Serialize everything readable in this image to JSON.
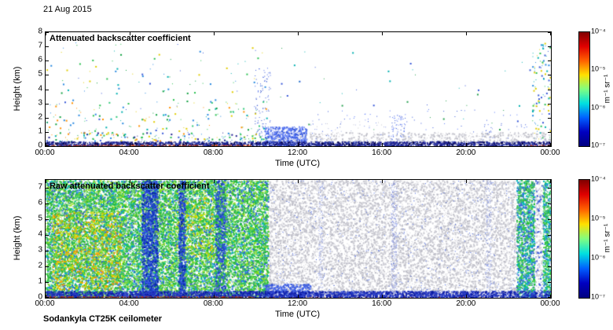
{
  "page": {
    "date_label": "21 Aug 2015",
    "footer_label": "Sodankyla CT25K ceilometer"
  },
  "chart_data": [
    {
      "type": "heatmap",
      "title": "Attenuated backscatter coefficient",
      "xlabel": "Time (UTC)",
      "ylabel": "Height (km)",
      "x_range_hours": [
        0,
        24
      ],
      "x_tick_hours": [
        0,
        4,
        8,
        12,
        16,
        20,
        24
      ],
      "x_tick_labels": [
        "00:00",
        "04:00",
        "08:00",
        "12:00",
        "16:00",
        "20:00",
        "00:00"
      ],
      "y_range_km": [
        0,
        8
      ],
      "y_tick_labels": [
        "0",
        "1",
        "2",
        "3",
        "4",
        "5",
        "6",
        "7",
        "8"
      ],
      "grid": false,
      "legend": "colorbar-right",
      "seed": 42,
      "colorbar": {
        "unit_label": "m⁻¹ sr⁻¹",
        "tick_labels": [
          "10⁻⁴",
          "10⁻⁵",
          "10⁻⁶",
          "10⁻⁷"
        ],
        "min": "1e-7",
        "max": "1e-4",
        "gradient": [
          "#800000",
          "#e00000",
          "#ff6000",
          "#ffe000",
          "#80ff80",
          "#00e0e0",
          "#0060ff",
          "#0000c0",
          "#000080"
        ]
      },
      "regions": [
        {
          "x": [
            0,
            10.6
          ],
          "y": [
            3.2,
            7.3
          ],
          "density": 0.004,
          "size": 2,
          "colors": [
            "#10a040",
            "#28c050",
            "#00b0b0",
            "#2888e0",
            "#e0cc00",
            "#3858d8"
          ]
        },
        {
          "x": [
            0,
            10.6
          ],
          "y": [
            1.0,
            3.2
          ],
          "density": 0.012,
          "size": 2,
          "colors": [
            "#10a040",
            "#28c050",
            "#00b0b0",
            "#2888e0",
            "#e0cc00",
            "#ff9000",
            "#3858d8",
            "#30c878"
          ]
        },
        {
          "x": [
            0,
            10.6
          ],
          "y": [
            0.3,
            1.0
          ],
          "density": 0.05,
          "size": 2,
          "colors": [
            "#10a040",
            "#28c050",
            "#00b0b0",
            "#2888e0",
            "#e0cc00",
            "#ff9000",
            "#3858d8",
            "#202090"
          ]
        },
        {
          "x": [
            10.6,
            23.1
          ],
          "y": [
            0.8,
            7.0
          ],
          "density": 0.0012,
          "size": 2,
          "colors": [
            "#3858d8",
            "#00b0b0",
            "#28a050"
          ]
        },
        {
          "x": [
            23.1,
            24
          ],
          "y": [
            0.4,
            7.3
          ],
          "density": 0.035,
          "size": 2,
          "colors": [
            "#00b0b0",
            "#2888e0",
            "#28c050",
            "#e0cc00",
            "#3858d8"
          ]
        },
        {
          "x": [
            9.9,
            10.7
          ],
          "y": [
            0,
            5.5
          ],
          "density": 0.05,
          "size": 1,
          "colors": [
            "#3858d8",
            "#2848c8",
            "#4868e8"
          ]
        },
        {
          "x": [
            10.6,
            24
          ],
          "y": [
            0,
            1.0
          ],
          "density": 0.12,
          "size": 2,
          "colors": [
            "#c6c6ce",
            "#d0d0d8",
            "#bcbcc6"
          ]
        },
        {
          "x": [
            12.4,
            16.2
          ],
          "y": [
            1.0,
            1.9
          ],
          "density": 0.02,
          "size": 1,
          "colors": [
            "#c6c6ce",
            "#8898e8",
            "#b0b8dd"
          ]
        },
        {
          "x": [
            10.4,
            12.4
          ],
          "y": [
            0,
            1.4
          ],
          "density": 0.38,
          "size": 2,
          "colors": [
            "#4868e8",
            "#5878f8",
            "#3858d8",
            "#8098f8"
          ]
        },
        {
          "x": [
            16.4,
            17.1
          ],
          "y": [
            0,
            2.2
          ],
          "density": 0.1,
          "size": 1,
          "colors": [
            "#3858d8",
            "#5878f8",
            "#8898e8"
          ]
        },
        {
          "x": [
            20.7,
            21.3
          ],
          "y": [
            0,
            1.5
          ],
          "density": 0.06,
          "size": 1,
          "colors": [
            "#3858d8",
            "#8898e8"
          ]
        },
        {
          "x": [
            12,
            23
          ],
          "y": [
            0.3,
            2.6
          ],
          "density": 0.006,
          "size": 1,
          "colors": [
            "#3858d8",
            "#5878f8"
          ]
        },
        {
          "x": [
            0,
            24
          ],
          "y": [
            0,
            0.35
          ],
          "density": 0.5,
          "size": 2,
          "colors": [
            "#141478",
            "#202094",
            "#3040b0",
            "#000048",
            "#2838a8"
          ]
        },
        {
          "x": [
            0,
            9.8
          ],
          "y": [
            0,
            0.1
          ],
          "density": 0.5,
          "size": 1,
          "colors": [
            "#c23000",
            "#e24800",
            "#8c2c08"
          ]
        },
        {
          "x": [
            22.8,
            24
          ],
          "y": [
            0,
            0.1
          ],
          "density": 0.3,
          "size": 1,
          "colors": [
            "#c23000",
            "#e24800"
          ]
        }
      ]
    },
    {
      "type": "heatmap",
      "title": "Raw attenuated backscatter coefficient",
      "xlabel": "Time (UTC)",
      "ylabel": "Height (km)",
      "x_range_hours": [
        0,
        24
      ],
      "x_tick_hours": [
        0,
        4,
        8,
        12,
        16,
        20,
        24
      ],
      "x_tick_labels": [
        "00:00",
        "04:00",
        "08:00",
        "12:00",
        "16:00",
        "20:00",
        "00:00"
      ],
      "y_range_km": [
        0,
        7.5
      ],
      "y_tick_labels": [
        "0",
        "1",
        "2",
        "3",
        "4",
        "5",
        "6",
        "7"
      ],
      "grid": false,
      "legend": "colorbar-right",
      "seed": 7,
      "colorbar": {
        "unit_label": "m⁻¹ sr⁻¹",
        "tick_labels": [
          "10⁻⁴",
          "10⁻⁵",
          "10⁻⁶",
          "10⁻⁷"
        ],
        "min": "1e-7",
        "max": "1e-4",
        "gradient": [
          "#800000",
          "#e00000",
          "#ff6000",
          "#ffe000",
          "#80ff80",
          "#00e0e0",
          "#0060ff",
          "#0000c0",
          "#000080"
        ]
      },
      "regions": [
        {
          "x": [
            0,
            10.6
          ],
          "y": [
            0,
            7.5
          ],
          "density": 0.5,
          "size": 2,
          "colors": [
            "#28b838",
            "#38c848",
            "#58d058",
            "#28b838",
            "#80d820",
            "#38c848",
            "#00b8b8",
            "#2878e8",
            "#3858d8",
            "#a8e020",
            "#28b838"
          ]
        },
        {
          "x": [
            0.3,
            3.6
          ],
          "y": [
            0.5,
            5.5
          ],
          "density": 0.1,
          "size": 2,
          "colors": [
            "#e8d800",
            "#ffb000",
            "#f09000",
            "#c8e000"
          ]
        },
        {
          "x": [
            6.2,
            8.0
          ],
          "y": [
            2.5,
            6.5
          ],
          "density": 0.05,
          "size": 2,
          "colors": [
            "#e8d800",
            "#c8e000",
            "#ffb000"
          ]
        },
        {
          "x": [
            4.55,
            5.35
          ],
          "y": [
            0,
            7.5
          ],
          "density": 0.45,
          "size": 2,
          "colors": [
            "#1838c8",
            "#2848d8",
            "#0828a8",
            "#3858e8"
          ]
        },
        {
          "x": [
            6.3,
            6.65
          ],
          "y": [
            0,
            7.5
          ],
          "density": 0.4,
          "size": 2,
          "colors": [
            "#1838c8",
            "#2848d8",
            "#0828a8",
            "#3858e8"
          ]
        },
        {
          "x": [
            8.05,
            8.55
          ],
          "y": [
            0,
            7.5
          ],
          "density": 0.35,
          "size": 2,
          "colors": [
            "#1838c8",
            "#2848d8",
            "#3858e8",
            "#28b838"
          ]
        },
        {
          "x": [
            10.6,
            22.35
          ],
          "y": [
            0,
            7.5
          ],
          "density": 0.2,
          "size": 2,
          "colors": [
            "#c6c6ce",
            "#d0d0d8",
            "#bcbcc6",
            "#cacad2"
          ]
        },
        {
          "x": [
            10.6,
            22.35
          ],
          "y": [
            0,
            7.5
          ],
          "density": 0.01,
          "size": 1,
          "colors": [
            "#3858d8",
            "#4868e8"
          ]
        },
        {
          "x": [
            12.95,
            13.2
          ],
          "y": [
            0,
            7.5
          ],
          "density": 0.16,
          "size": 1,
          "colors": [
            "#8898e0",
            "#a0ace8",
            "#b8c0ec"
          ]
        },
        {
          "x": [
            16.4,
            16.7
          ],
          "y": [
            0,
            7.5
          ],
          "density": 0.2,
          "size": 1,
          "colors": [
            "#6878d8",
            "#8898e0",
            "#a0ace8"
          ]
        },
        {
          "x": [
            20.9,
            21.2
          ],
          "y": [
            0,
            7.5
          ],
          "density": 0.14,
          "size": 1,
          "colors": [
            "#8898e0",
            "#a0ace8"
          ]
        },
        {
          "x": [
            22.35,
            23.25
          ],
          "y": [
            0,
            7.5
          ],
          "density": 0.48,
          "size": 2,
          "colors": [
            "#28b838",
            "#38c848",
            "#00b8b8",
            "#2878e8",
            "#3858d8",
            "#58d058"
          ]
        },
        {
          "x": [
            23.25,
            23.6
          ],
          "y": [
            0,
            7.5
          ],
          "density": 0.18,
          "size": 2,
          "colors": [
            "#c6c6ce",
            "#3858d8",
            "#d0d0d8"
          ]
        },
        {
          "x": [
            23.6,
            24
          ],
          "y": [
            0,
            7.5
          ],
          "density": 0.45,
          "size": 2,
          "colors": [
            "#28b838",
            "#38c848",
            "#00b8b8",
            "#2878e8",
            "#58d058"
          ]
        },
        {
          "x": [
            10.4,
            12.6
          ],
          "y": [
            0,
            0.9
          ],
          "density": 0.45,
          "size": 2,
          "colors": [
            "#4060e0",
            "#5070f0",
            "#3858d8"
          ]
        },
        {
          "x": [
            0,
            24
          ],
          "y": [
            0,
            0.45
          ],
          "density": 0.55,
          "size": 2,
          "colors": [
            "#1828b0",
            "#2838c0",
            "#0818a0",
            "#3048d0"
          ]
        },
        {
          "x": [
            0,
            10
          ],
          "y": [
            0,
            0.1
          ],
          "density": 0.5,
          "size": 1,
          "colors": [
            "#c23000",
            "#e24800",
            "#8c2c08"
          ]
        },
        {
          "x": [
            10,
            21
          ],
          "y": [
            0,
            0.07
          ],
          "density": 0.1,
          "size": 1,
          "colors": [
            "#c23000",
            "#9c3008"
          ]
        }
      ]
    }
  ]
}
